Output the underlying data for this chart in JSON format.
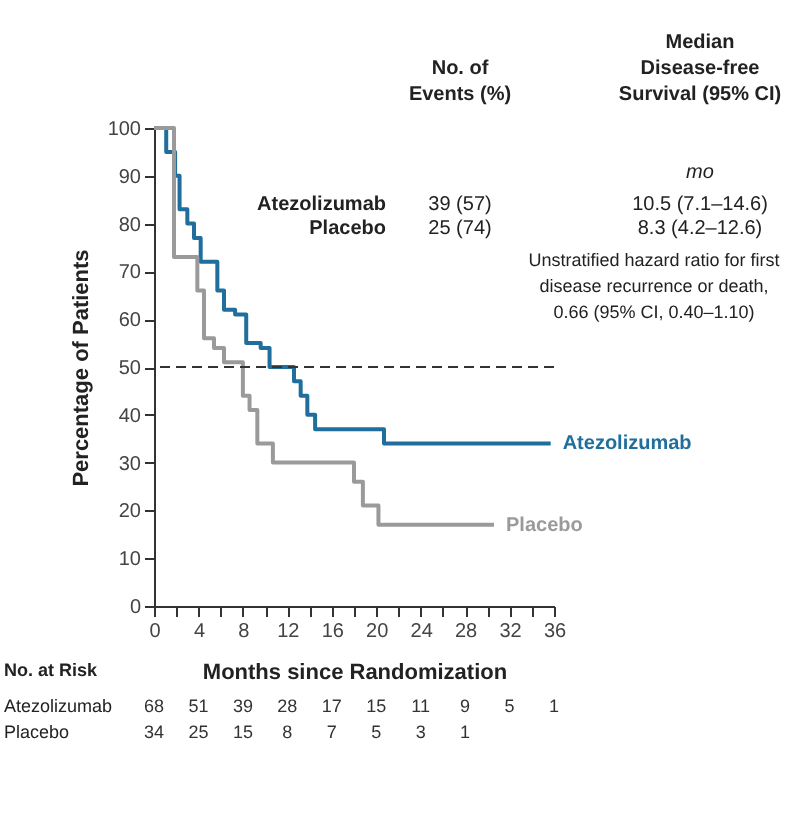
{
  "chart_data": {
    "type": "step",
    "xlabel": "Months since Randomization",
    "ylabel": "Percentage of Patients",
    "xlim": [
      0,
      36
    ],
    "ylim": [
      0,
      100
    ],
    "xticks": [
      0,
      {
        "value": 2,
        "label": null
      },
      4,
      {
        "value": 6,
        "label": null
      },
      8,
      {
        "value": 10,
        "label": null
      },
      12,
      {
        "value": 14,
        "label": null
      },
      16,
      {
        "value": 18,
        "label": null
      },
      20,
      {
        "value": 22,
        "label": null
      },
      24,
      {
        "value": 26,
        "label": null
      },
      28,
      {
        "value": 30,
        "label": null
      },
      32,
      {
        "value": 34,
        "label": null
      },
      36
    ],
    "yticks": [
      0,
      10,
      20,
      30,
      40,
      50,
      60,
      70,
      80,
      90,
      100
    ],
    "grid": false,
    "legend": false,
    "line_style": "solid",
    "marker": "none",
    "series": [
      {
        "name": "Atezolizumab",
        "color": "#1f6e9c",
        "x": [
          0,
          1.1,
          1.9,
          2.3,
          3.0,
          3.6,
          4.2,
          5.7,
          6.3,
          7.3,
          8.3,
          9.6,
          10.4,
          12.6,
          13.2,
          13.8,
          14.5,
          20.7,
          35.7
        ],
        "values": [
          100,
          95,
          90,
          83,
          80,
          77,
          72,
          66,
          62,
          61,
          55,
          54,
          50,
          47,
          44,
          40,
          37,
          34,
          34
        ]
      },
      {
        "name": "Placebo",
        "color": "#9a9a9a",
        "x": [
          0,
          1.8,
          3.9,
          4.5,
          5.4,
          6.3,
          8.0,
          8.6,
          9.3,
          10.7,
          18.0,
          18.8,
          20.2,
          30.6
        ],
        "values": [
          100,
          73,
          66,
          56,
          54,
          51,
          44,
          41,
          34,
          30,
          26,
          21,
          17,
          17
        ]
      }
    ],
    "ref_lines": [
      {
        "axis": "y",
        "value": 50,
        "label": null,
        "color": "#333333",
        "line_style": "dashed"
      }
    ],
    "annotations": [
      "No. of\nEvents (%)",
      "Median\nDisease-free\nSurvival (95% CI)",
      "mo",
      "Atezolizumab",
      "39 (57)",
      "10.5 (7.1–14.6)",
      "Placebo",
      "25 (74)",
      "8.3 (4.2–12.6)",
      "Unstratified hazard ratio for first\ndisease recurrence or death,\n0.66 (95% CI, 0.40–1.10)",
      "No. at Risk",
      "Atezolizumab",
      "68 51 39 28 17 15 11 9 5 1",
      "Placebo",
      "34 25 15 8 7 5 3 1"
    ]
  }
}
